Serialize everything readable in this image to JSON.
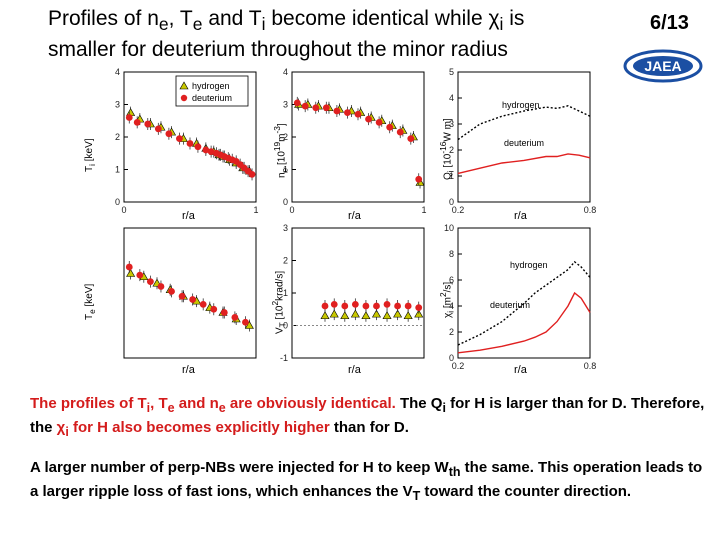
{
  "header": {
    "title_line1_a": "Profiles of n",
    "title_sub_e1": "e",
    "title_line1_b": ", T",
    "title_sub_e2": "e",
    "title_line1_c": " and T",
    "title_sub_i": "i",
    "title_line1_d": " become identical while ",
    "title_chi": "χ",
    "title_sub_i2": "i",
    "title_line1_e": " is",
    "title_line2": "smaller for deuterium throughout the minor radius",
    "page_number": "6/13",
    "logo_text": "JAEA"
  },
  "colors": {
    "hydrogen": "#c8c800",
    "deuterium": "#e02020",
    "accent": "#d41c1c",
    "logo_blue": "#1b4fa3"
  },
  "legend": {
    "hydrogen": "hydrogen",
    "deuterium": "deuterium"
  },
  "panels": {
    "ti": {
      "ylabel": "T",
      "ylabel_sub": "i",
      "ylabel_unit": " [keV]",
      "xlabel": "r/a"
    },
    "ne": {
      "ylabel": "n",
      "ylabel_sub": "e",
      "ylabel_unit": " [10",
      "ylabel_sup": "19",
      "ylabel_unit2": "m",
      "ylabel_sup2": "-3",
      "ylabel_end": "]",
      "xlabel": "r/a"
    },
    "qi": {
      "ylabel": "Q",
      "ylabel_sub": "i",
      "ylabel_unit": " [10",
      "ylabel_sup": "-16",
      "ylabel_unit2": "W m]",
      "xlabel": "r/a",
      "label_h": "hydrogen",
      "label_d": "deuterium"
    },
    "te": {
      "ylabel": "T",
      "ylabel_sub": "e",
      "ylabel_unit": " [keV]",
      "xlabel": "r/a"
    },
    "vt": {
      "ylabel": "V",
      "ylabel_sub": "T",
      "ylabel_unit": " [10",
      "ylabel_sup": "2",
      "ylabel_unit2": "krad/s]",
      "xlabel": "r/a"
    },
    "chi": {
      "ylabel": "χ",
      "ylabel_sub": "i",
      "ylabel_unit": " [m",
      "ylabel_sup": "2",
      "ylabel_unit2": "/s]",
      "xlabel": "r/a",
      "label_h": "hydrogen",
      "label_d": "deuterium"
    }
  },
  "chart_data": [
    {
      "id": "ti",
      "type": "scatter",
      "xlim": [
        0,
        1
      ],
      "ylim": [
        0,
        4
      ],
      "xticks": [
        "0",
        "1"
      ],
      "yticks": [
        "0",
        "1",
        "2",
        "3",
        "4"
      ],
      "series": [
        {
          "name": "hydrogen",
          "x": [
            0.05,
            0.12,
            0.2,
            0.28,
            0.36,
            0.45,
            0.55,
            0.62,
            0.68,
            0.72,
            0.75,
            0.8,
            0.85,
            0.9,
            0.95
          ],
          "y": [
            2.75,
            2.55,
            2.4,
            2.3,
            2.15,
            1.95,
            1.8,
            1.65,
            1.55,
            1.45,
            1.4,
            1.3,
            1.2,
            1.05,
            0.95
          ]
        },
        {
          "name": "deuterium",
          "x": [
            0.04,
            0.1,
            0.18,
            0.26,
            0.34,
            0.42,
            0.5,
            0.56,
            0.62,
            0.66,
            0.7,
            0.73,
            0.76,
            0.79,
            0.82,
            0.85,
            0.88,
            0.91,
            0.94,
            0.97
          ],
          "y": [
            2.6,
            2.45,
            2.4,
            2.25,
            2.1,
            1.95,
            1.8,
            1.7,
            1.6,
            1.55,
            1.5,
            1.45,
            1.4,
            1.35,
            1.3,
            1.25,
            1.15,
            1.05,
            0.95,
            0.85
          ]
        }
      ]
    },
    {
      "id": "ne",
      "type": "scatter",
      "xlim": [
        0,
        1
      ],
      "ylim": [
        0,
        4
      ],
      "xticks": [
        "0",
        "1"
      ],
      "yticks": [
        "0",
        "1",
        "2",
        "3",
        "4"
      ],
      "series": [
        {
          "name": "hydrogen",
          "x": [
            0.05,
            0.12,
            0.2,
            0.28,
            0.36,
            0.45,
            0.52,
            0.6,
            0.68,
            0.76,
            0.84,
            0.92,
            0.97
          ],
          "y": [
            3.0,
            3.0,
            2.95,
            2.9,
            2.85,
            2.8,
            2.75,
            2.6,
            2.5,
            2.35,
            2.2,
            2.0,
            0.6
          ]
        },
        {
          "name": "deuterium",
          "x": [
            0.04,
            0.1,
            0.18,
            0.26,
            0.34,
            0.42,
            0.5,
            0.58,
            0.66,
            0.74,
            0.82,
            0.9,
            0.96
          ],
          "y": [
            3.05,
            2.95,
            2.9,
            2.9,
            2.8,
            2.75,
            2.7,
            2.55,
            2.45,
            2.3,
            2.15,
            1.95,
            0.7
          ]
        }
      ]
    },
    {
      "id": "qi",
      "type": "line",
      "xlim": [
        0.2,
        0.8
      ],
      "ylim": [
        0,
        5
      ],
      "xticks": [
        "0.2",
        "0.8"
      ],
      "yticks": [
        "0",
        "1",
        "2",
        "3",
        "4",
        "5"
      ],
      "series": [
        {
          "name": "hydrogen",
          "x": [
            0.2,
            0.3,
            0.4,
            0.5,
            0.6,
            0.65,
            0.7,
            0.75,
            0.8
          ],
          "y": [
            2.4,
            3.0,
            3.3,
            3.5,
            3.65,
            3.6,
            3.7,
            3.5,
            3.3
          ]
        },
        {
          "name": "deuterium",
          "x": [
            0.2,
            0.3,
            0.4,
            0.5,
            0.6,
            0.65,
            0.7,
            0.75,
            0.8
          ],
          "y": [
            1.1,
            1.3,
            1.5,
            1.6,
            1.75,
            1.75,
            1.85,
            1.8,
            1.7
          ]
        }
      ]
    },
    {
      "id": "te",
      "type": "scatter",
      "xlim": [
        0,
        1
      ],
      "ylim": [
        0,
        4
      ],
      "xticks": [],
      "yticks": [],
      "series": [
        {
          "name": "hydrogen",
          "x": [
            0.05,
            0.15,
            0.25,
            0.35,
            0.45,
            0.55,
            0.65,
            0.75,
            0.85,
            0.95
          ],
          "y": [
            2.6,
            2.5,
            2.3,
            2.1,
            1.9,
            1.75,
            1.55,
            1.4,
            1.2,
            1.0
          ]
        },
        {
          "name": "deuterium",
          "x": [
            0.04,
            0.12,
            0.2,
            0.28,
            0.36,
            0.44,
            0.52,
            0.6,
            0.68,
            0.76,
            0.84,
            0.92
          ],
          "y": [
            2.8,
            2.55,
            2.35,
            2.2,
            2.05,
            1.9,
            1.8,
            1.65,
            1.5,
            1.4,
            1.25,
            1.1
          ]
        }
      ]
    },
    {
      "id": "vt",
      "type": "scatter",
      "xlim": [
        0,
        1
      ],
      "ylim": [
        -1,
        3
      ],
      "xticks": [],
      "yticks": [
        "-1",
        "0",
        "1",
        "2",
        "3"
      ],
      "series": [
        {
          "name": "hydrogen",
          "x": [
            0.25,
            0.32,
            0.4,
            0.48,
            0.56,
            0.64,
            0.72,
            0.8,
            0.88,
            0.96
          ],
          "y": [
            0.3,
            0.35,
            0.3,
            0.35,
            0.3,
            0.35,
            0.3,
            0.35,
            0.3,
            0.35
          ]
        },
        {
          "name": "deuterium",
          "x": [
            0.25,
            0.32,
            0.4,
            0.48,
            0.56,
            0.64,
            0.72,
            0.8,
            0.88,
            0.96
          ],
          "y": [
            0.6,
            0.65,
            0.6,
            0.65,
            0.6,
            0.6,
            0.65,
            0.6,
            0.6,
            0.55
          ]
        }
      ]
    },
    {
      "id": "chi",
      "type": "line",
      "xlim": [
        0.2,
        0.8
      ],
      "ylim": [
        0,
        10
      ],
      "xticks": [
        "0.2",
        "0.8"
      ],
      "yticks": [
        "0",
        "2",
        "4",
        "6",
        "8",
        "10"
      ],
      "series": [
        {
          "name": "hydrogen",
          "x": [
            0.2,
            0.3,
            0.4,
            0.5,
            0.55,
            0.6,
            0.65,
            0.7,
            0.73,
            0.76,
            0.8
          ],
          "y": [
            1.0,
            1.8,
            2.8,
            4.2,
            5.0,
            5.6,
            6.2,
            6.8,
            7.4,
            7.0,
            6.2
          ]
        },
        {
          "name": "deuterium",
          "x": [
            0.2,
            0.3,
            0.4,
            0.5,
            0.55,
            0.6,
            0.65,
            0.7,
            0.73,
            0.76,
            0.8
          ],
          "y": [
            0.4,
            0.6,
            0.9,
            1.3,
            1.6,
            2.0,
            2.8,
            4.0,
            5.0,
            4.6,
            3.5
          ]
        }
      ]
    }
  ],
  "body": {
    "p1_a": "The profiles of T",
    "p1_sub_i": "i",
    "p1_b": ", T",
    "p1_sub_e": "e",
    "p1_c": " and n",
    "p1_sub_e2": "e",
    "p1_d": " are obviously identical.",
    "p1_e": " The Q",
    "p1_sub_i2": "i",
    "p1_f": " for H is larger than for D. Therefore, the ",
    "p1_chi": "χ",
    "p1_sub_i3": "i",
    "p1_g": " for H also becomes explicitly higher",
    "p1_h": " than for D.",
    "p2_a": "A larger number of perp-NBs were injected for H to keep W",
    "p2_sub_th": "th",
    "p2_b": " the same. This operation leads to a larger ripple loss of fast ions, which enhances the V",
    "p2_sub_t": "T",
    "p2_c": " toward the counter direction."
  }
}
